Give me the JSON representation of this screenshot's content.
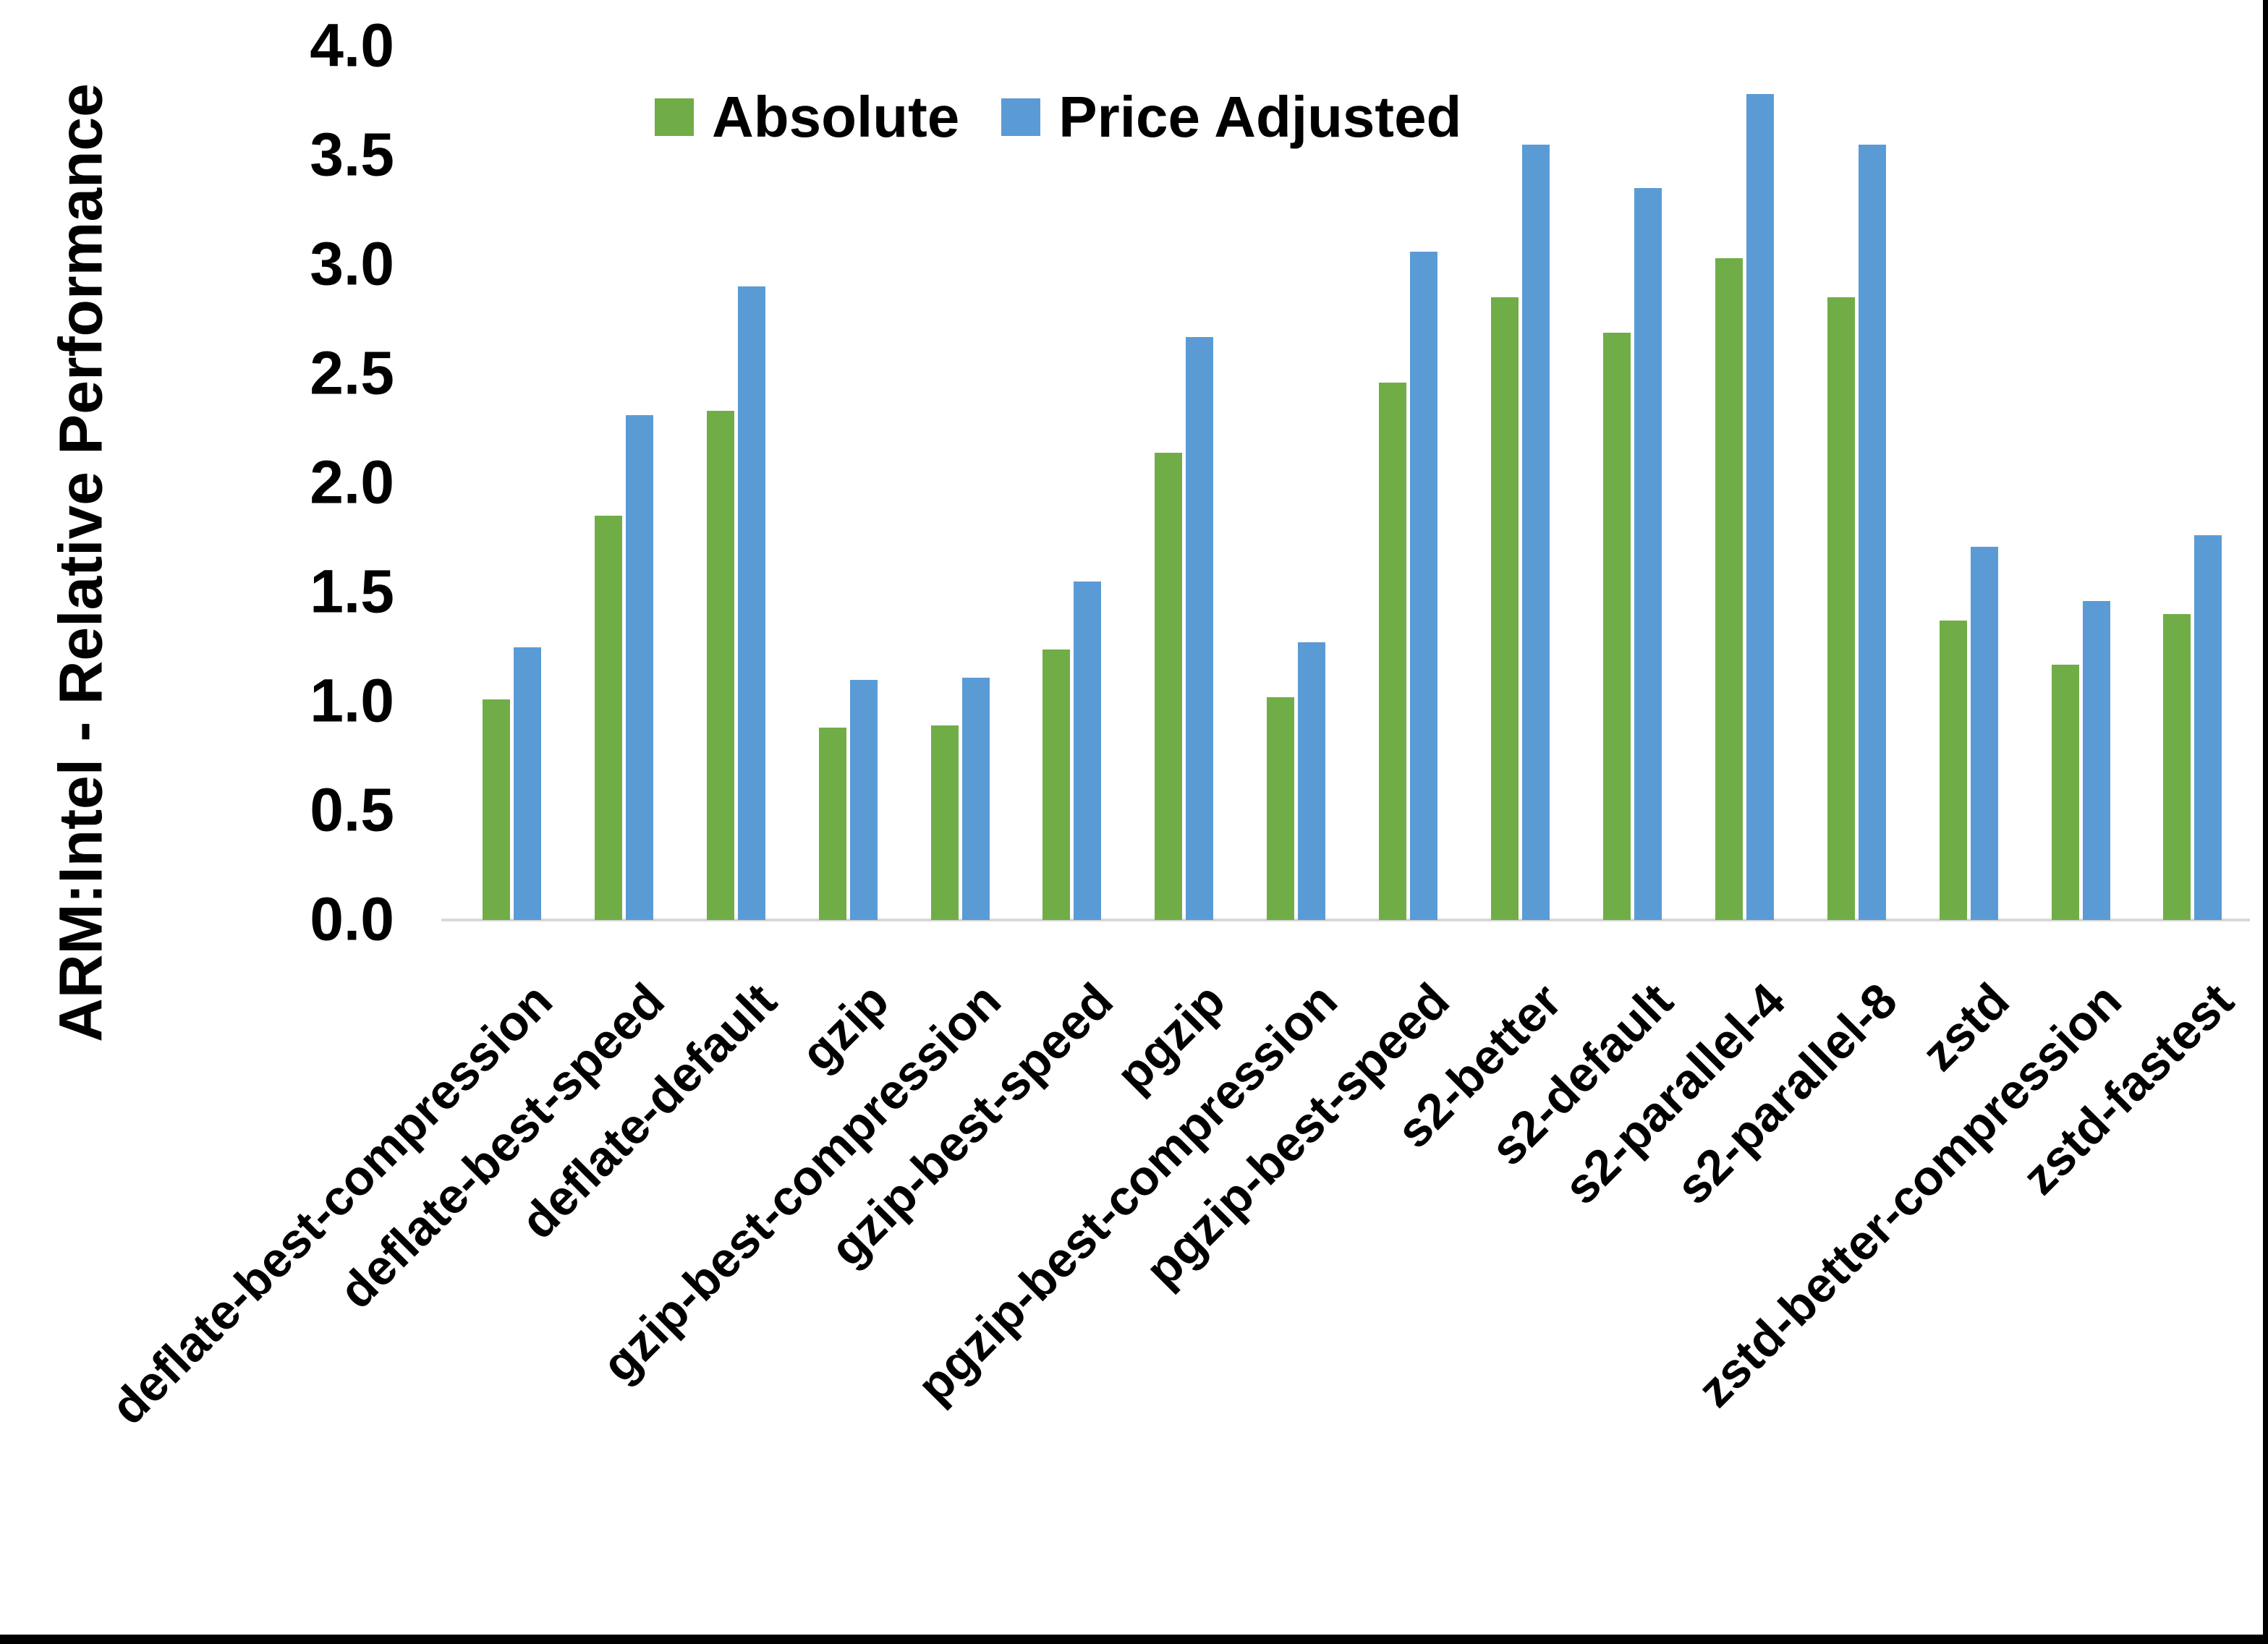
{
  "chart_data": {
    "type": "bar",
    "title": "",
    "ylabel": "ARM:Intel - Relative Performance",
    "xlabel": "",
    "ylim": [
      0,
      4.0
    ],
    "ytick_step": 0.5,
    "ytick_labels": [
      "0.0",
      "0.5",
      "1.0",
      "1.5",
      "2.0",
      "2.5",
      "3.0",
      "3.5",
      "4.0"
    ],
    "grid": false,
    "legend_position": "top-center",
    "categories": [
      "deflate-best-compression",
      "deflate-best-speed",
      "deflate-default",
      "gzip",
      "gzip-best-compression",
      "gzip-best-speed",
      "pgzip",
      "pgzip-best-compression",
      "pgzip-best-speed",
      "s2-better",
      "s2-default",
      "s2-parallel-4",
      "s2-parallel-8",
      "zstd",
      "zstd-better-compression",
      "zstd-fastest"
    ],
    "series": [
      {
        "name": "Absolute",
        "color": "#70AD47",
        "values": [
          1.01,
          1.85,
          2.33,
          0.88,
          0.89,
          1.24,
          2.14,
          1.02,
          2.46,
          2.85,
          2.69,
          3.03,
          2.85,
          1.37,
          1.17,
          1.4
        ]
      },
      {
        "name": "Price Adjusted",
        "color": "#5B9BD5",
        "values": [
          1.25,
          2.31,
          2.9,
          1.1,
          1.11,
          1.55,
          2.67,
          1.27,
          3.06,
          3.55,
          3.35,
          3.78,
          3.55,
          1.71,
          1.46,
          1.76
        ]
      }
    ],
    "axis_line_color": "#D9D9D9",
    "text_color": "#000000",
    "background": "#FFFFFF",
    "frame_color": "#000000"
  }
}
